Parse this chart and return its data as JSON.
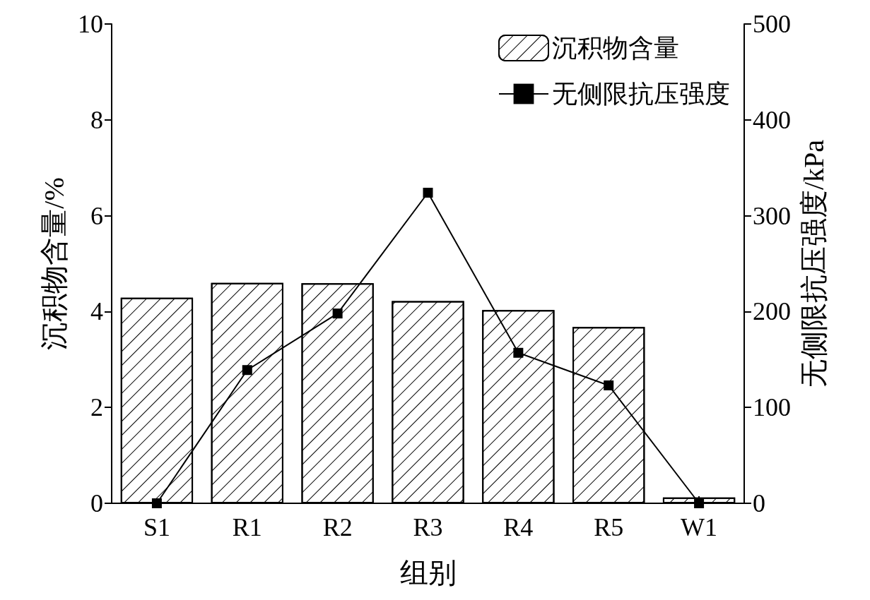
{
  "chart_data": {
    "type": "bar",
    "xlabel": "组别",
    "ylabel": "沉积物含量/%",
    "y2label": "无侧限抗压强度/kPa",
    "categories": [
      "S1",
      "R1",
      "R2",
      "R3",
      "R4",
      "R5",
      "W1"
    ],
    "series": [
      {
        "name": "沉积物含量",
        "color": "#ffffff",
        "values": [
          4.29,
          4.6,
          4.59,
          4.22,
          4.03,
          3.68,
          0.12
        ]
      },
      {
        "name": "无侧限抗压强度",
        "type": "line",
        "axis": "y2",
        "color": "#000000",
        "marker": "square",
        "values": [
          0,
          139,
          198,
          324,
          157,
          123,
          0
        ]
      }
    ],
    "ylim": [
      0,
      10
    ],
    "yticks": [
      0,
      2,
      4,
      6,
      8,
      10
    ],
    "y2lim": [
      0,
      500
    ],
    "y2ticks": [
      0,
      100,
      200,
      300,
      400,
      500
    ],
    "legend": "top right",
    "grid": false
  }
}
